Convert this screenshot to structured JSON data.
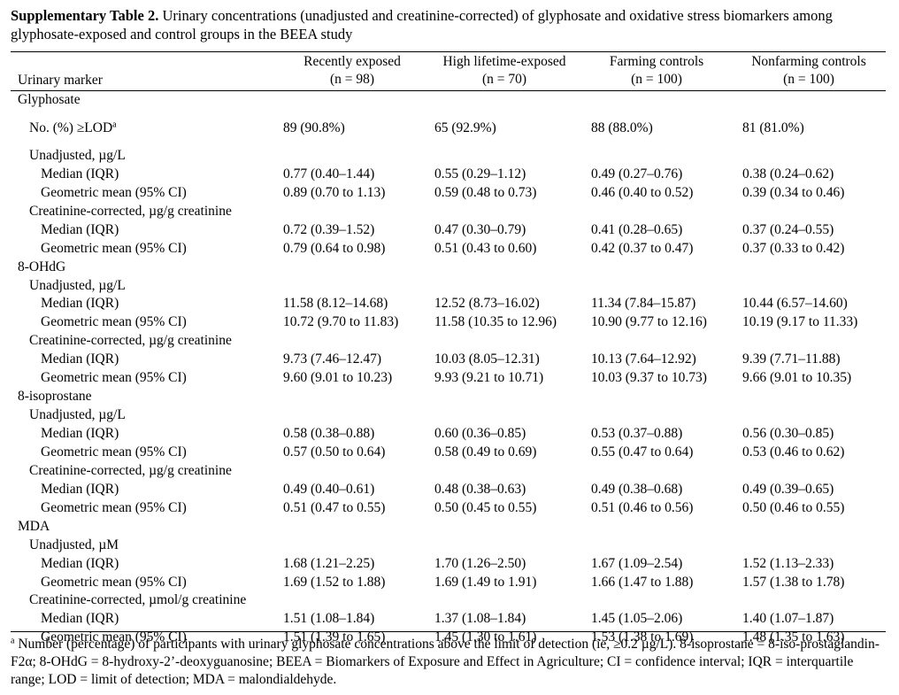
{
  "caption": {
    "label": "Supplementary Table 2.",
    "text": " Urinary concentrations (unadjusted and creatinine-corrected) of glyphosate and oxidative stress biomarkers among glyphosate-exposed and control groups in the BEEA study"
  },
  "headers": {
    "marker": "Urinary marker",
    "groups": [
      {
        "name": "Recently exposed",
        "n": "(n = 98)"
      },
      {
        "name": "High lifetime-exposed",
        "n": "(n = 70)"
      },
      {
        "name": "Farming controls",
        "n": "(n = 100)"
      },
      {
        "name": "Nonfarming controls",
        "n": "(n = 100)"
      }
    ]
  },
  "rows": [
    {
      "level": 0,
      "label": "Glyphosate",
      "values": []
    },
    {
      "level": 1,
      "label": "No. (%) ≥LOD",
      "sup": "a",
      "tall": true,
      "values": [
        "89 (90.8%)",
        "65 (92.9%)",
        "88 (88.0%)",
        "81 (81.0%)"
      ]
    },
    {
      "level": 1,
      "label": "Unadjusted, µg/L",
      "values": []
    },
    {
      "level": 2,
      "label": "Median (IQR)",
      "values": [
        "0.77 (0.40–1.44)",
        "0.55 (0.29–1.12)",
        "0.49 (0.27–0.76)",
        "0.38 (0.24–0.62)"
      ]
    },
    {
      "level": 2,
      "label": "Geometric mean (95% CI)",
      "values": [
        "0.89 (0.70 to 1.13)",
        "0.59 (0.48 to 0.73)",
        "0.46 (0.40 to 0.52)",
        "0.39 (0.34 to 0.46)"
      ]
    },
    {
      "level": 1,
      "label": "Creatinine-corrected, µg/g creatinine",
      "values": []
    },
    {
      "level": 2,
      "label": "Median (IQR)",
      "values": [
        "0.72 (0.39–1.52)",
        "0.47 (0.30–0.79)",
        "0.41 (0.28–0.65)",
        "0.37 (0.24–0.55)"
      ]
    },
    {
      "level": 2,
      "label": "Geometric mean (95% CI)",
      "values": [
        "0.79 (0.64 to 0.98)",
        "0.51 (0.43 to 0.60)",
        "0.42 (0.37 to 0.47)",
        "0.37 (0.33 to 0.42)"
      ]
    },
    {
      "level": 0,
      "label": "8-OHdG",
      "values": []
    },
    {
      "level": 1,
      "label": "Unadjusted, µg/L",
      "values": []
    },
    {
      "level": 2,
      "label": "Median (IQR)",
      "values": [
        "11.58 (8.12–14.68)",
        "12.52 (8.73–16.02)",
        "11.34 (7.84–15.87)",
        "10.44 (6.57–14.60)"
      ]
    },
    {
      "level": 2,
      "label": "Geometric mean (95% CI)",
      "values": [
        "10.72 (9.70 to 11.83)",
        "11.58 (10.35 to 12.96)",
        "10.90 (9.77 to 12.16)",
        "10.19 (9.17 to 11.33)"
      ]
    },
    {
      "level": 1,
      "label": "Creatinine-corrected, µg/g creatinine",
      "values": []
    },
    {
      "level": 2,
      "label": "Median (IQR)",
      "values": [
        "9.73 (7.46–12.47)",
        "10.03 (8.05–12.31)",
        "10.13 (7.64–12.92)",
        "9.39 (7.71–11.88)"
      ]
    },
    {
      "level": 2,
      "label": "Geometric mean (95% CI)",
      "values": [
        "9.60 (9.01 to 10.23)",
        "9.93 (9.21 to 10.71)",
        "10.03 (9.37 to 10.73)",
        "9.66 (9.01 to 10.35)"
      ]
    },
    {
      "level": 0,
      "label": "8-isoprostane",
      "values": []
    },
    {
      "level": 1,
      "label": "Unadjusted, µg/L",
      "values": []
    },
    {
      "level": 2,
      "label": "Median (IQR)",
      "values": [
        "0.58 (0.38–0.88)",
        "0.60 (0.36–0.85)",
        "0.53 (0.37–0.88)",
        "0.56 (0.30–0.85)"
      ]
    },
    {
      "level": 2,
      "label": "Geometric mean (95% CI)",
      "values": [
        "0.57 (0.50 to 0.64)",
        "0.58 (0.49 to 0.69)",
        "0.55 (0.47 to 0.64)",
        "0.53 (0.46 to 0.62)"
      ]
    },
    {
      "level": 1,
      "label": "Creatinine-corrected, µg/g creatinine",
      "values": []
    },
    {
      "level": 2,
      "label": "Median (IQR)",
      "values": [
        "0.49 (0.40–0.61)",
        "0.48 (0.38–0.63)",
        "0.49 (0.38–0.68)",
        "0.49 (0.39–0.65)"
      ]
    },
    {
      "level": 2,
      "label": "Geometric mean (95% CI)",
      "values": [
        "0.51 (0.47 to 0.55)",
        "0.50 (0.45 to 0.55)",
        "0.51 (0.46 to 0.56)",
        "0.50 (0.46 to 0.55)"
      ]
    },
    {
      "level": 0,
      "label": "MDA",
      "values": []
    },
    {
      "level": 1,
      "label": "Unadjusted, µM",
      "values": []
    },
    {
      "level": 2,
      "label": "Median (IQR)",
      "values": [
        "1.68 (1.21–2.25)",
        "1.70 (1.26–2.50)",
        "1.67 (1.09–2.54)",
        "1.52 (1.13–2.33)"
      ]
    },
    {
      "level": 2,
      "label": "Geometric mean (95% CI)",
      "values": [
        "1.69 (1.52 to 1.88)",
        "1.69 (1.49 to 1.91)",
        "1.66 (1.47 to 1.88)",
        "1.57 (1.38 to 1.78)"
      ]
    },
    {
      "level": 1,
      "label": "Creatinine-corrected, µmol/g creatinine",
      "values": []
    },
    {
      "level": 2,
      "label": "Median (IQR)",
      "values": [
        "1.51 (1.08–1.84)",
        "1.37 (1.08–1.84)",
        "1.45 (1.05–2.06)",
        "1.40 (1.07–1.87)"
      ]
    },
    {
      "level": 2,
      "label": "Geometric mean (95% CI)",
      "values": [
        "1.51 (1.39 to 1.65)",
        "1.45 (1.30 to 1.61)",
        "1.53 (1.38 to 1.69)",
        "1.48 (1.35 to 1.63)"
      ]
    }
  ],
  "footnote": {
    "marker": "a",
    "text": " Number (percentage) of participants with urinary glyphosate concentrations above the limit of detection (ie, ≥0.2 µg/L). 8-isoprostane = 8-iso-prostaglandin-F2α; 8-OHdG = 8-hydroxy-2’-deoxyguanosine; BEEA = Biomarkers of Exposure and Effect in Agriculture; CI = confidence interval; IQR = interquartile range; LOD = limit of detection; MDA = malondialdehyde."
  }
}
